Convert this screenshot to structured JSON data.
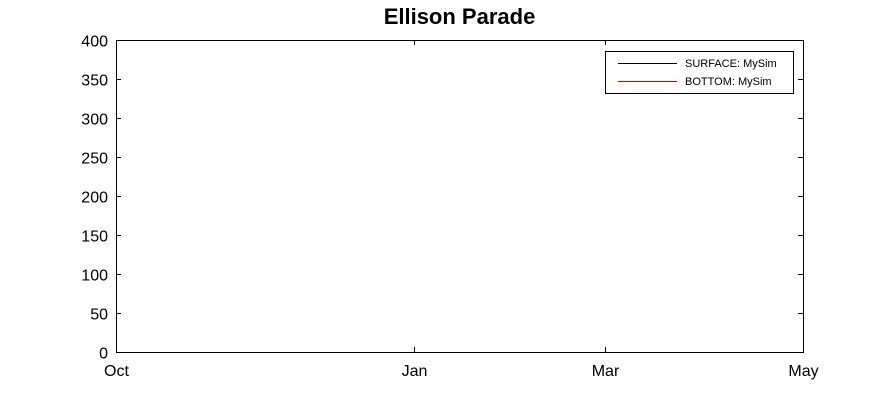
{
  "chart_data": {
    "type": "line",
    "title": "Ellison Parade",
    "xlabel": "",
    "ylabel": "",
    "x_ticks": [
      "Oct",
      "Jan",
      "Mar",
      "May"
    ],
    "x_tick_days": [
      0,
      92,
      151,
      212
    ],
    "x_range_days": [
      0,
      212
    ],
    "ylim": [
      0,
      400
    ],
    "y_ticks": [
      0,
      50,
      100,
      150,
      200,
      250,
      300,
      350,
      400
    ],
    "grid": false,
    "legend_position": "top-right",
    "series": [
      {
        "name": "SURFACE: MySim",
        "color": "#000000",
        "values": []
      },
      {
        "name": "BOTTOM: MySim",
        "color": "#cc0000",
        "values": []
      }
    ]
  }
}
